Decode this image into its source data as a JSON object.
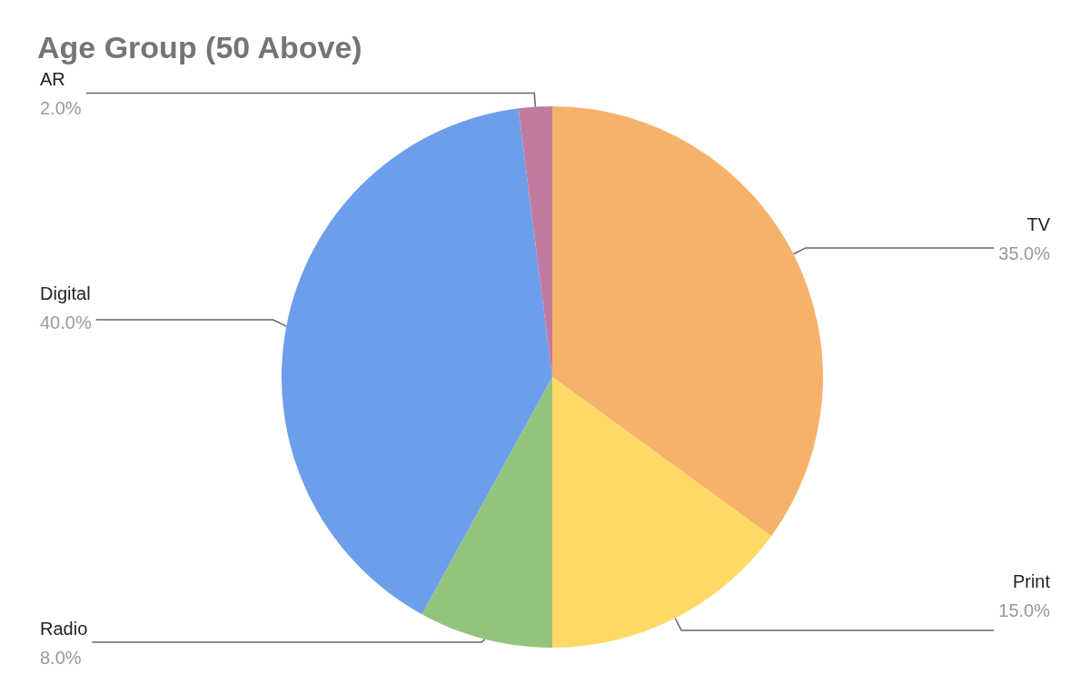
{
  "chart_data": {
    "type": "pie",
    "title": "Age Group (50 Above)",
    "categories": [
      "TV",
      "Print",
      "Radio",
      "Digital",
      "AR"
    ],
    "values": [
      35,
      15,
      8,
      40,
      2
    ],
    "value_labels": [
      "35.0%",
      "15.0%",
      "8.0%",
      "40.0%",
      "2.0%"
    ],
    "colors": [
      "#f6b26b",
      "#ffd966",
      "#93c47d",
      "#6d9eeb",
      "#c27ba0"
    ],
    "legend": false
  }
}
